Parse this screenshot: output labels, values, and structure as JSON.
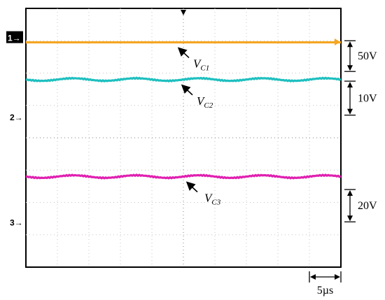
{
  "chart_data": {
    "type": "line",
    "grid": true,
    "x_divisions": 10,
    "y_divisions": 8,
    "series": [
      {
        "name": "V_C1",
        "label_main": "V",
        "label_sub": "C1",
        "color": "#f5a623",
        "level_div": 1.05,
        "ripple_div": 0.0
      },
      {
        "name": "V_C2",
        "label_main": "V",
        "label_sub": "C2",
        "color": "#1fbfbf",
        "level_div": 2.2,
        "ripple_div": 0.04
      },
      {
        "name": "V_C3",
        "label_main": "V",
        "label_sub": "C3",
        "color": "#e020b0",
        "level_div": 5.2,
        "ripple_div": 0.04
      }
    ],
    "channel_markers": [
      "1",
      "2",
      "3"
    ],
    "channel_marker_level_div": [
      0.9,
      3.35,
      6.6
    ],
    "scales": [
      {
        "label": "50V",
        "from_div": 1.0,
        "to_div": 1.95
      },
      {
        "label": "10V",
        "from_div": 2.25,
        "to_div": 3.3
      },
      {
        "label": "20V",
        "from_div": 5.6,
        "to_div": 6.6
      }
    ],
    "time_scale": {
      "label": "5µs",
      "divisions": 1
    }
  }
}
